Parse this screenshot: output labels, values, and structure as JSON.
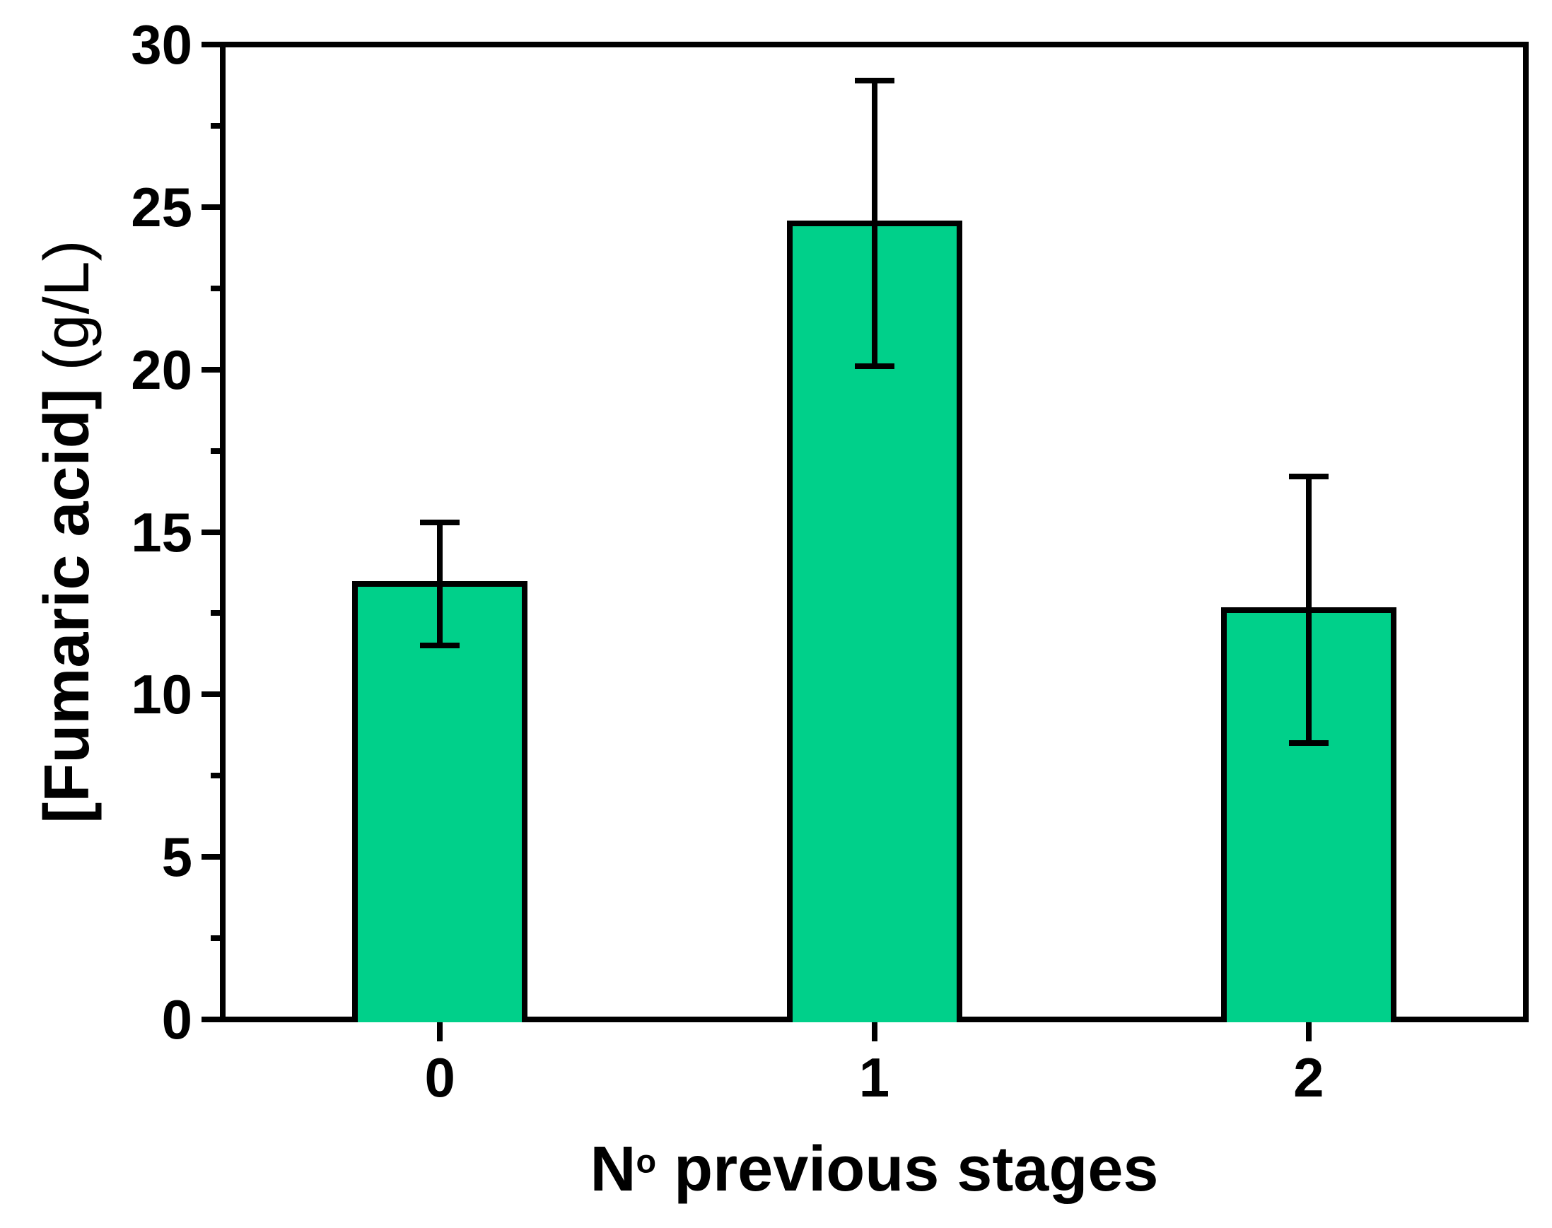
{
  "chart_data": {
    "type": "bar",
    "title": "",
    "categories": [
      "0",
      "1",
      "2"
    ],
    "values": [
      13.4,
      24.5,
      12.6
    ],
    "errors": [
      1.9,
      4.4,
      4.1
    ],
    "error_caps": [
      [
        11.5,
        15.3
      ],
      [
        20.1,
        28.9
      ],
      [
        8.5,
        16.7
      ]
    ],
    "xlabel": {
      "prefix": "N",
      "superscript": "o",
      "rest": " previous stages"
    },
    "ylabel": {
      "bold": "[Fumaric acid]",
      "normal": " (g/L)"
    },
    "ylim": [
      0,
      30
    ],
    "yticks": [
      0,
      5,
      10,
      15,
      20,
      25,
      30
    ],
    "ytick_minor": [
      2.5,
      7.5,
      12.5,
      17.5,
      22.5,
      27.5
    ],
    "grid": false,
    "legend_position": "none",
    "bar_color": "#00D08A",
    "bar_border_color": "#000000",
    "error_bar_color": "#000000",
    "axis_color": "#000000",
    "background_color": "#FFFFFF",
    "bar_width_fraction": 0.4
  }
}
